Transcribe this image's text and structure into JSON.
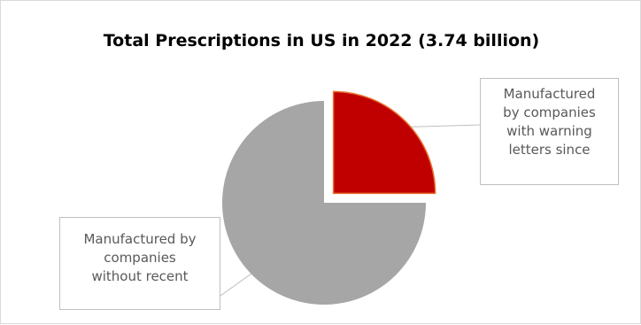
{
  "chart_data": {
    "type": "pie",
    "title": "Total Prescriptions in US in 2022 (3.74 billion)",
    "slices": [
      {
        "label_lines": [
          "Manufactured",
          "by companies",
          "with warning",
          "letters since"
        ],
        "value": 25,
        "color": "#c00000",
        "exploded": true
      },
      {
        "label_lines": [
          "Manufactured by",
          "companies",
          "without recent"
        ],
        "value": 75,
        "color": "#a6a6a6",
        "exploded": false
      }
    ],
    "start_angle_deg": 0,
    "legend": "none",
    "label_style": "callout"
  },
  "colors": {
    "border": "#d9d9d9",
    "callout_border": "#bfbfbf",
    "label_text": "#595959",
    "slice_outline": "#e97132"
  }
}
